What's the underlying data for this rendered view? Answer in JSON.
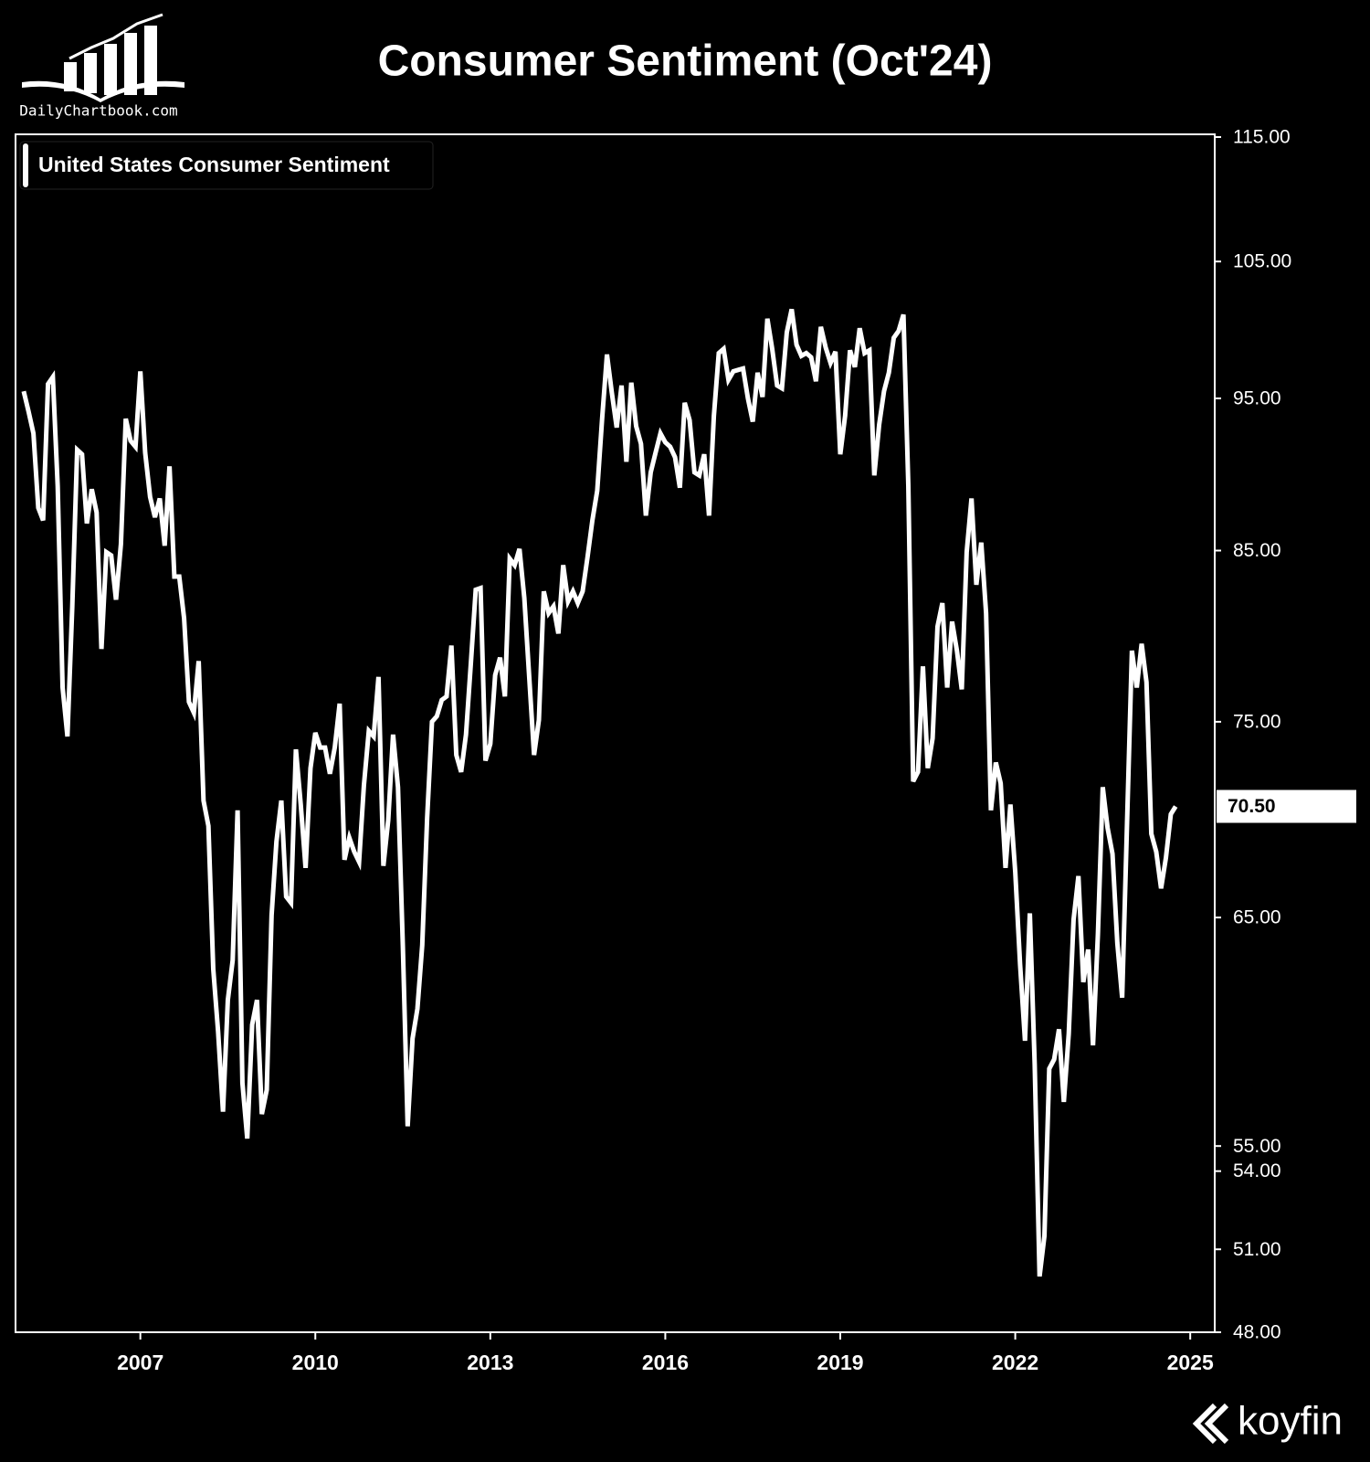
{
  "chart_data": {
    "type": "line",
    "title": "Consumer Sentiment (Oct'24)",
    "brand": "DailyChartbook.com",
    "source": "koyfin",
    "log_scale": true,
    "xlim": [
      2004.86,
      2025.42
    ],
    "xticks": [
      2007,
      2010,
      2013,
      2016,
      2019,
      2022,
      2025
    ],
    "ylim": [
      48,
      115
    ],
    "yticks": [
      {
        "value": 115,
        "label": "115.00"
      },
      {
        "value": 105,
        "label": "105.00"
      },
      {
        "value": 95,
        "label": "95.00"
      },
      {
        "value": 85,
        "label": "85.00"
      },
      {
        "value": 75,
        "label": "75.00"
      },
      {
        "value": 65,
        "label": "65.00"
      },
      {
        "value": 55,
        "label": "55.00"
      },
      {
        "value": 54,
        "label": "54.00"
      },
      {
        "value": 51,
        "label": "51.00"
      },
      {
        "value": 48,
        "label": "48.00"
      }
    ],
    "x": [
      2005,
      2005.083,
      2005.167,
      2005.25,
      2005.333,
      2005.417,
      2005.5,
      2005.583,
      2005.667,
      2005.75,
      2005.833,
      2005.917,
      2006,
      2006.083,
      2006.167,
      2006.25,
      2006.333,
      2006.417,
      2006.5,
      2006.583,
      2006.667,
      2006.75,
      2006.833,
      2006.917,
      2007,
      2007.083,
      2007.167,
      2007.25,
      2007.333,
      2007.417,
      2007.5,
      2007.583,
      2007.667,
      2007.75,
      2007.833,
      2007.917,
      2008,
      2008.083,
      2008.167,
      2008.25,
      2008.333,
      2008.417,
      2008.5,
      2008.583,
      2008.667,
      2008.75,
      2008.833,
      2008.917,
      2009,
      2009.083,
      2009.167,
      2009.25,
      2009.333,
      2009.417,
      2009.5,
      2009.583,
      2009.667,
      2009.75,
      2009.833,
      2009.917,
      2010,
      2010.083,
      2010.167,
      2010.25,
      2010.333,
      2010.417,
      2010.5,
      2010.583,
      2010.667,
      2010.75,
      2010.833,
      2010.917,
      2011,
      2011.083,
      2011.167,
      2011.25,
      2011.333,
      2011.417,
      2011.5,
      2011.583,
      2011.667,
      2011.75,
      2011.833,
      2011.917,
      2012,
      2012.083,
      2012.167,
      2012.25,
      2012.333,
      2012.417,
      2012.5,
      2012.583,
      2012.667,
      2012.75,
      2012.833,
      2012.917,
      2013,
      2013.083,
      2013.167,
      2013.25,
      2013.333,
      2013.417,
      2013.5,
      2013.583,
      2013.667,
      2013.75,
      2013.833,
      2013.917,
      2014,
      2014.083,
      2014.167,
      2014.25,
      2014.333,
      2014.417,
      2014.5,
      2014.583,
      2014.667,
      2014.75,
      2014.833,
      2014.917,
      2015,
      2015.083,
      2015.167,
      2015.25,
      2015.333,
      2015.417,
      2015.5,
      2015.583,
      2015.667,
      2015.75,
      2015.833,
      2015.917,
      2016,
      2016.083,
      2016.167,
      2016.25,
      2016.333,
      2016.417,
      2016.5,
      2016.583,
      2016.667,
      2016.75,
      2016.833,
      2016.917,
      2017,
      2017.083,
      2017.167,
      2017.25,
      2017.333,
      2017.417,
      2017.5,
      2017.583,
      2017.667,
      2017.75,
      2017.833,
      2017.917,
      2018,
      2018.083,
      2018.167,
      2018.25,
      2018.333,
      2018.417,
      2018.5,
      2018.583,
      2018.667,
      2018.75,
      2018.833,
      2018.917,
      2019,
      2019.083,
      2019.167,
      2019.25,
      2019.333,
      2019.417,
      2019.5,
      2019.583,
      2019.667,
      2019.75,
      2019.833,
      2019.917,
      2020,
      2020.083,
      2020.167,
      2020.25,
      2020.333,
      2020.417,
      2020.5,
      2020.583,
      2020.667,
      2020.75,
      2020.833,
      2020.917,
      2021,
      2021.083,
      2021.167,
      2021.25,
      2021.333,
      2021.417,
      2021.5,
      2021.583,
      2021.667,
      2021.75,
      2021.833,
      2021.917,
      2022,
      2022.083,
      2022.167,
      2022.25,
      2022.333,
      2022.417,
      2022.5,
      2022.583,
      2022.667,
      2022.75,
      2022.833,
      2022.917,
      2023,
      2023.083,
      2023.167,
      2023.25,
      2023.333,
      2023.417,
      2023.5,
      2023.583,
      2023.667,
      2023.75,
      2023.833,
      2023.917,
      2024,
      2024.083,
      2024.167,
      2024.25,
      2024.333,
      2024.417,
      2024.5,
      2024.583,
      2024.667,
      2024.75
    ],
    "series": [
      {
        "name": "United States Consumer Sentiment",
        "color": "#ffffff",
        "last_label": "70.50",
        "values": [
          95.5,
          94.1,
          92.6,
          87.7,
          86.9,
          96.0,
          96.5,
          89.1,
          76.9,
          74.2,
          81.6,
          91.5,
          91.2,
          86.7,
          88.9,
          87.4,
          79.1,
          84.9,
          84.7,
          82.0,
          85.4,
          93.6,
          92.1,
          91.7,
          96.9,
          91.3,
          88.4,
          87.1,
          88.3,
          85.3,
          90.4,
          83.4,
          83.4,
          80.9,
          76.1,
          75.5,
          78.4,
          70.8,
          69.5,
          62.6,
          59.8,
          56.4,
          61.2,
          63.0,
          70.3,
          57.6,
          55.3,
          60.1,
          61.2,
          56.3,
          57.3,
          65.1,
          68.7,
          70.8,
          66.0,
          65.7,
          73.5,
          70.6,
          67.4,
          72.5,
          74.4,
          73.6,
          73.6,
          72.2,
          73.6,
          76.0,
          67.8,
          68.9,
          68.2,
          67.7,
          71.6,
          74.5,
          74.2,
          77.5,
          67.5,
          69.8,
          74.3,
          71.5,
          63.7,
          55.8,
          59.5,
          60.8,
          63.7,
          69.9,
          75.0,
          75.3,
          76.2,
          76.4,
          79.3,
          73.2,
          72.3,
          74.3,
          78.3,
          82.6,
          82.7,
          72.9,
          73.8,
          77.6,
          78.6,
          76.4,
          84.5,
          84.1,
          85.1,
          82.1,
          77.5,
          73.2,
          75.1,
          82.5,
          81.2,
          81.6,
          80.0,
          84.1,
          81.9,
          82.5,
          81.8,
          82.5,
          84.6,
          86.9,
          88.8,
          93.6,
          98.1,
          95.4,
          93.0,
          95.9,
          90.7,
          96.1,
          93.1,
          91.9,
          87.2,
          90.0,
          91.3,
          92.6,
          92.0,
          91.7,
          91.0,
          89.0,
          94.7,
          93.5,
          90.0,
          89.8,
          91.2,
          87.2,
          93.8,
          98.2,
          98.5,
          96.3,
          96.9,
          97.0,
          97.1,
          95.0,
          93.4,
          96.8,
          95.1,
          100.7,
          98.5,
          95.9,
          95.7,
          99.7,
          101.4,
          98.8,
          98.0,
          98.2,
          97.9,
          96.2,
          100.1,
          98.6,
          97.5,
          98.3,
          91.2,
          93.8,
          98.4,
          97.2,
          100.0,
          98.2,
          98.4,
          89.8,
          93.2,
          95.5,
          96.8,
          99.3,
          99.8,
          101.0,
          89.1,
          71.8,
          72.3,
          78.1,
          72.5,
          74.1,
          80.4,
          81.8,
          76.9,
          80.7,
          79.0,
          76.8,
          84.9,
          88.3,
          82.9,
          85.5,
          81.2,
          70.3,
          72.8,
          71.7,
          67.4,
          70.6,
          67.2,
          62.8,
          59.4,
          65.2,
          58.4,
          50.0,
          51.5,
          58.2,
          58.6,
          59.9,
          56.8,
          59.7,
          64.9,
          67.0,
          62.0,
          63.5,
          59.2,
          64.2,
          71.5,
          69.4,
          68.1,
          63.8,
          61.3,
          69.7,
          79.0,
          76.9,
          79.4,
          77.2,
          69.1,
          68.2,
          66.4,
          67.9,
          70.1,
          70.5
        ]
      }
    ]
  }
}
